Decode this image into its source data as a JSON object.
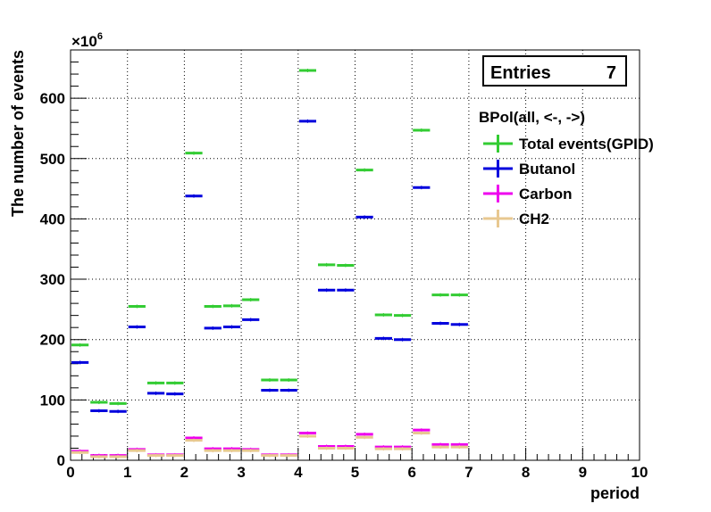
{
  "chart_data": {
    "type": "line",
    "title": "",
    "xlabel": "period",
    "ylabel": "The number of events",
    "y_multiplier_label": "×10",
    "y_multiplier_exponent": "6",
    "xlim": [
      0,
      10
    ],
    "ylim": [
      0,
      680
    ],
    "x_ticks": [
      "0",
      "1",
      "2",
      "3",
      "4",
      "5",
      "6",
      "7",
      "8",
      "9",
      "10"
    ],
    "y_ticks": [
      "0",
      "100",
      "200",
      "300",
      "400",
      "500",
      "600"
    ],
    "grid": true,
    "stats_box": {
      "label": "Entries",
      "value": "7"
    },
    "legend": {
      "header": "BPol(all, <-, ->)",
      "placement": "top-right"
    },
    "series": [
      {
        "name": "Total events(GPID)",
        "color": "#33cc33",
        "bins": [
          {
            "x0": 0,
            "x1": 0.333,
            "y": 191
          },
          {
            "x0": 0.333,
            "x1": 0.667,
            "y": 96
          },
          {
            "x0": 0.667,
            "x1": 1,
            "y": 94
          },
          {
            "x0": 1,
            "x1": 1.333,
            "y": 255
          },
          {
            "x0": 1.333,
            "x1": 1.667,
            "y": 128
          },
          {
            "x0": 1.667,
            "x1": 2,
            "y": 128
          },
          {
            "x0": 2,
            "x1": 2.333,
            "y": 509
          },
          {
            "x0": 2.333,
            "x1": 2.667,
            "y": 255
          },
          {
            "x0": 2.667,
            "x1": 3,
            "y": 256
          },
          {
            "x0": 3,
            "x1": 3.333,
            "y": 266
          },
          {
            "x0": 3.333,
            "x1": 3.667,
            "y": 133
          },
          {
            "x0": 3.667,
            "x1": 4,
            "y": 133
          },
          {
            "x0": 4,
            "x1": 4.333,
            "y": 646
          },
          {
            "x0": 4.333,
            "x1": 4.667,
            "y": 324
          },
          {
            "x0": 4.667,
            "x1": 5,
            "y": 323
          },
          {
            "x0": 5,
            "x1": 5.333,
            "y": 481
          },
          {
            "x0": 5.333,
            "x1": 5.667,
            "y": 241
          },
          {
            "x0": 5.667,
            "x1": 6,
            "y": 240
          },
          {
            "x0": 6,
            "x1": 6.333,
            "y": 547
          },
          {
            "x0": 6.333,
            "x1": 6.667,
            "y": 274
          },
          {
            "x0": 6.667,
            "x1": 7,
            "y": 274
          }
        ]
      },
      {
        "name": "Butanol",
        "color": "#0000dd",
        "bins": [
          {
            "x0": 0,
            "x1": 0.333,
            "y": 162
          },
          {
            "x0": 0.333,
            "x1": 0.667,
            "y": 82
          },
          {
            "x0": 0.667,
            "x1": 1,
            "y": 81
          },
          {
            "x0": 1,
            "x1": 1.333,
            "y": 221
          },
          {
            "x0": 1.333,
            "x1": 1.667,
            "y": 111
          },
          {
            "x0": 1.667,
            "x1": 2,
            "y": 110
          },
          {
            "x0": 2,
            "x1": 2.333,
            "y": 438
          },
          {
            "x0": 2.333,
            "x1": 2.667,
            "y": 219
          },
          {
            "x0": 2.667,
            "x1": 3,
            "y": 221
          },
          {
            "x0": 3,
            "x1": 3.333,
            "y": 233
          },
          {
            "x0": 3.333,
            "x1": 3.667,
            "y": 116
          },
          {
            "x0": 3.667,
            "x1": 4,
            "y": 116
          },
          {
            "x0": 4,
            "x1": 4.333,
            "y": 562
          },
          {
            "x0": 4.333,
            "x1": 4.667,
            "y": 282
          },
          {
            "x0": 4.667,
            "x1": 5,
            "y": 282
          },
          {
            "x0": 5,
            "x1": 5.333,
            "y": 403
          },
          {
            "x0": 5.333,
            "x1": 5.667,
            "y": 202
          },
          {
            "x0": 5.667,
            "x1": 6,
            "y": 200
          },
          {
            "x0": 6,
            "x1": 6.333,
            "y": 452
          },
          {
            "x0": 6.333,
            "x1": 6.667,
            "y": 227
          },
          {
            "x0": 6.667,
            "x1": 7,
            "y": 225
          }
        ]
      },
      {
        "name": "Carbon",
        "color": "#ee00ee",
        "bins": [
          {
            "x0": 0,
            "x1": 0.333,
            "y": 15
          },
          {
            "x0": 0.333,
            "x1": 0.667,
            "y": 8
          },
          {
            "x0": 0.667,
            "x1": 1,
            "y": 8
          },
          {
            "x0": 1,
            "x1": 1.333,
            "y": 18
          },
          {
            "x0": 1.333,
            "x1": 1.667,
            "y": 9
          },
          {
            "x0": 1.667,
            "x1": 2,
            "y": 9
          },
          {
            "x0": 2,
            "x1": 2.333,
            "y": 37
          },
          {
            "x0": 2.333,
            "x1": 2.667,
            "y": 19
          },
          {
            "x0": 2.667,
            "x1": 3,
            "y": 19
          },
          {
            "x0": 3,
            "x1": 3.333,
            "y": 18
          },
          {
            "x0": 3.333,
            "x1": 3.667,
            "y": 9
          },
          {
            "x0": 3.667,
            "x1": 4,
            "y": 9
          },
          {
            "x0": 4,
            "x1": 4.333,
            "y": 45
          },
          {
            "x0": 4.333,
            "x1": 4.667,
            "y": 23
          },
          {
            "x0": 4.667,
            "x1": 5,
            "y": 23
          },
          {
            "x0": 5,
            "x1": 5.333,
            "y": 43
          },
          {
            "x0": 5.333,
            "x1": 5.667,
            "y": 22
          },
          {
            "x0": 5.667,
            "x1": 6,
            "y": 22
          },
          {
            "x0": 6,
            "x1": 6.333,
            "y": 50
          },
          {
            "x0": 6.333,
            "x1": 6.667,
            "y": 26
          },
          {
            "x0": 6.667,
            "x1": 7,
            "y": 26
          }
        ]
      },
      {
        "name": "CH2",
        "color": "#e8c890",
        "bins": [
          {
            "x0": 0,
            "x1": 0.333,
            "y": 13
          },
          {
            "x0": 0.333,
            "x1": 0.667,
            "y": 6
          },
          {
            "x0": 0.667,
            "x1": 1,
            "y": 6
          },
          {
            "x0": 1,
            "x1": 1.333,
            "y": 16
          },
          {
            "x0": 1.333,
            "x1": 1.667,
            "y": 8
          },
          {
            "x0": 1.667,
            "x1": 2,
            "y": 8
          },
          {
            "x0": 2,
            "x1": 2.333,
            "y": 33
          },
          {
            "x0": 2.333,
            "x1": 2.667,
            "y": 16
          },
          {
            "x0": 2.667,
            "x1": 3,
            "y": 16
          },
          {
            "x0": 3,
            "x1": 3.333,
            "y": 16
          },
          {
            "x0": 3.333,
            "x1": 3.667,
            "y": 8
          },
          {
            "x0": 3.667,
            "x1": 4,
            "y": 8
          },
          {
            "x0": 4,
            "x1": 4.333,
            "y": 40
          },
          {
            "x0": 4.333,
            "x1": 4.667,
            "y": 20
          },
          {
            "x0": 4.667,
            "x1": 5,
            "y": 20
          },
          {
            "x0": 5,
            "x1": 5.333,
            "y": 38
          },
          {
            "x0": 5.333,
            "x1": 5.667,
            "y": 19
          },
          {
            "x0": 5.667,
            "x1": 6,
            "y": 19
          },
          {
            "x0": 6,
            "x1": 6.333,
            "y": 45
          },
          {
            "x0": 6.333,
            "x1": 6.667,
            "y": 22
          },
          {
            "x0": 6.667,
            "x1": 7,
            "y": 22
          }
        ]
      }
    ]
  }
}
